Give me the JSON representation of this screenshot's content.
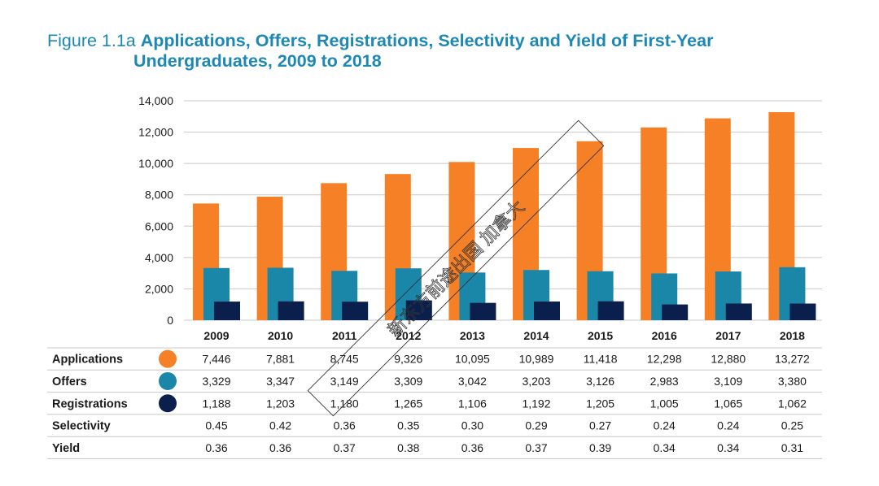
{
  "figure_label": "Figure 1.1a",
  "title_line1": "Applications, Offers, Registrations, Selectivity and Yield of First-Year",
  "title_line2": "Undergraduates, 2009 to 2018",
  "watermark": "新东方前途出国 加拿大",
  "colors": {
    "applications": "#f58025",
    "offers": "#1a86a8",
    "registrations": "#0b1f4d",
    "title": "#1d88b4",
    "grid": "#c8c8c8"
  },
  "chart_data": {
    "type": "bar",
    "title": "Applications, Offers, Registrations, Selectivity and Yield of First-Year Undergraduates, 2009 to 2018",
    "categories": [
      "2009",
      "2010",
      "2011",
      "2012",
      "2013",
      "2014",
      "2015",
      "2016",
      "2017",
      "2018"
    ],
    "ylim": [
      0,
      14000
    ],
    "yticks": [
      0,
      2000,
      4000,
      6000,
      8000,
      10000,
      12000,
      14000
    ],
    "ytick_labels": [
      "0",
      "2,000",
      "4,000",
      "6,000",
      "8,000",
      "10,000",
      "12,000",
      "14,000"
    ],
    "grid": true,
    "series": [
      {
        "name": "Applications",
        "values": [
          7446,
          7881,
          8745,
          9326,
          10095,
          10989,
          11418,
          12298,
          12880,
          13272
        ],
        "labels": [
          "7,446",
          "7,881",
          "8,745",
          "9,326",
          "10,095",
          "10,989",
          "11,418",
          "12,298",
          "12,880",
          "13,272"
        ]
      },
      {
        "name": "Offers",
        "values": [
          3329,
          3347,
          3149,
          3309,
          3042,
          3203,
          3126,
          2983,
          3109,
          3380
        ],
        "labels": [
          "3,329",
          "3,347",
          "3,149",
          "3,309",
          "3,042",
          "3,203",
          "3,126",
          "2,983",
          "3,109",
          "3,380"
        ]
      },
      {
        "name": "Registrations",
        "values": [
          1188,
          1203,
          1180,
          1265,
          1106,
          1192,
          1205,
          1005,
          1065,
          1062
        ],
        "labels": [
          "1,188",
          "1,203",
          "1,180",
          "1,265",
          "1,106",
          "1,192",
          "1,205",
          "1,005",
          "1,065",
          "1,062"
        ]
      }
    ],
    "table_rows": [
      {
        "name": "Selectivity",
        "labels": [
          "0.45",
          "0.42",
          "0.36",
          "0.35",
          "0.30",
          "0.29",
          "0.27",
          "0.24",
          "0.24",
          "0.25"
        ]
      },
      {
        "name": "Yield",
        "labels": [
          "0.36",
          "0.36",
          "0.37",
          "0.38",
          "0.36",
          "0.37",
          "0.39",
          "0.34",
          "0.34",
          "0.31"
        ]
      }
    ]
  }
}
